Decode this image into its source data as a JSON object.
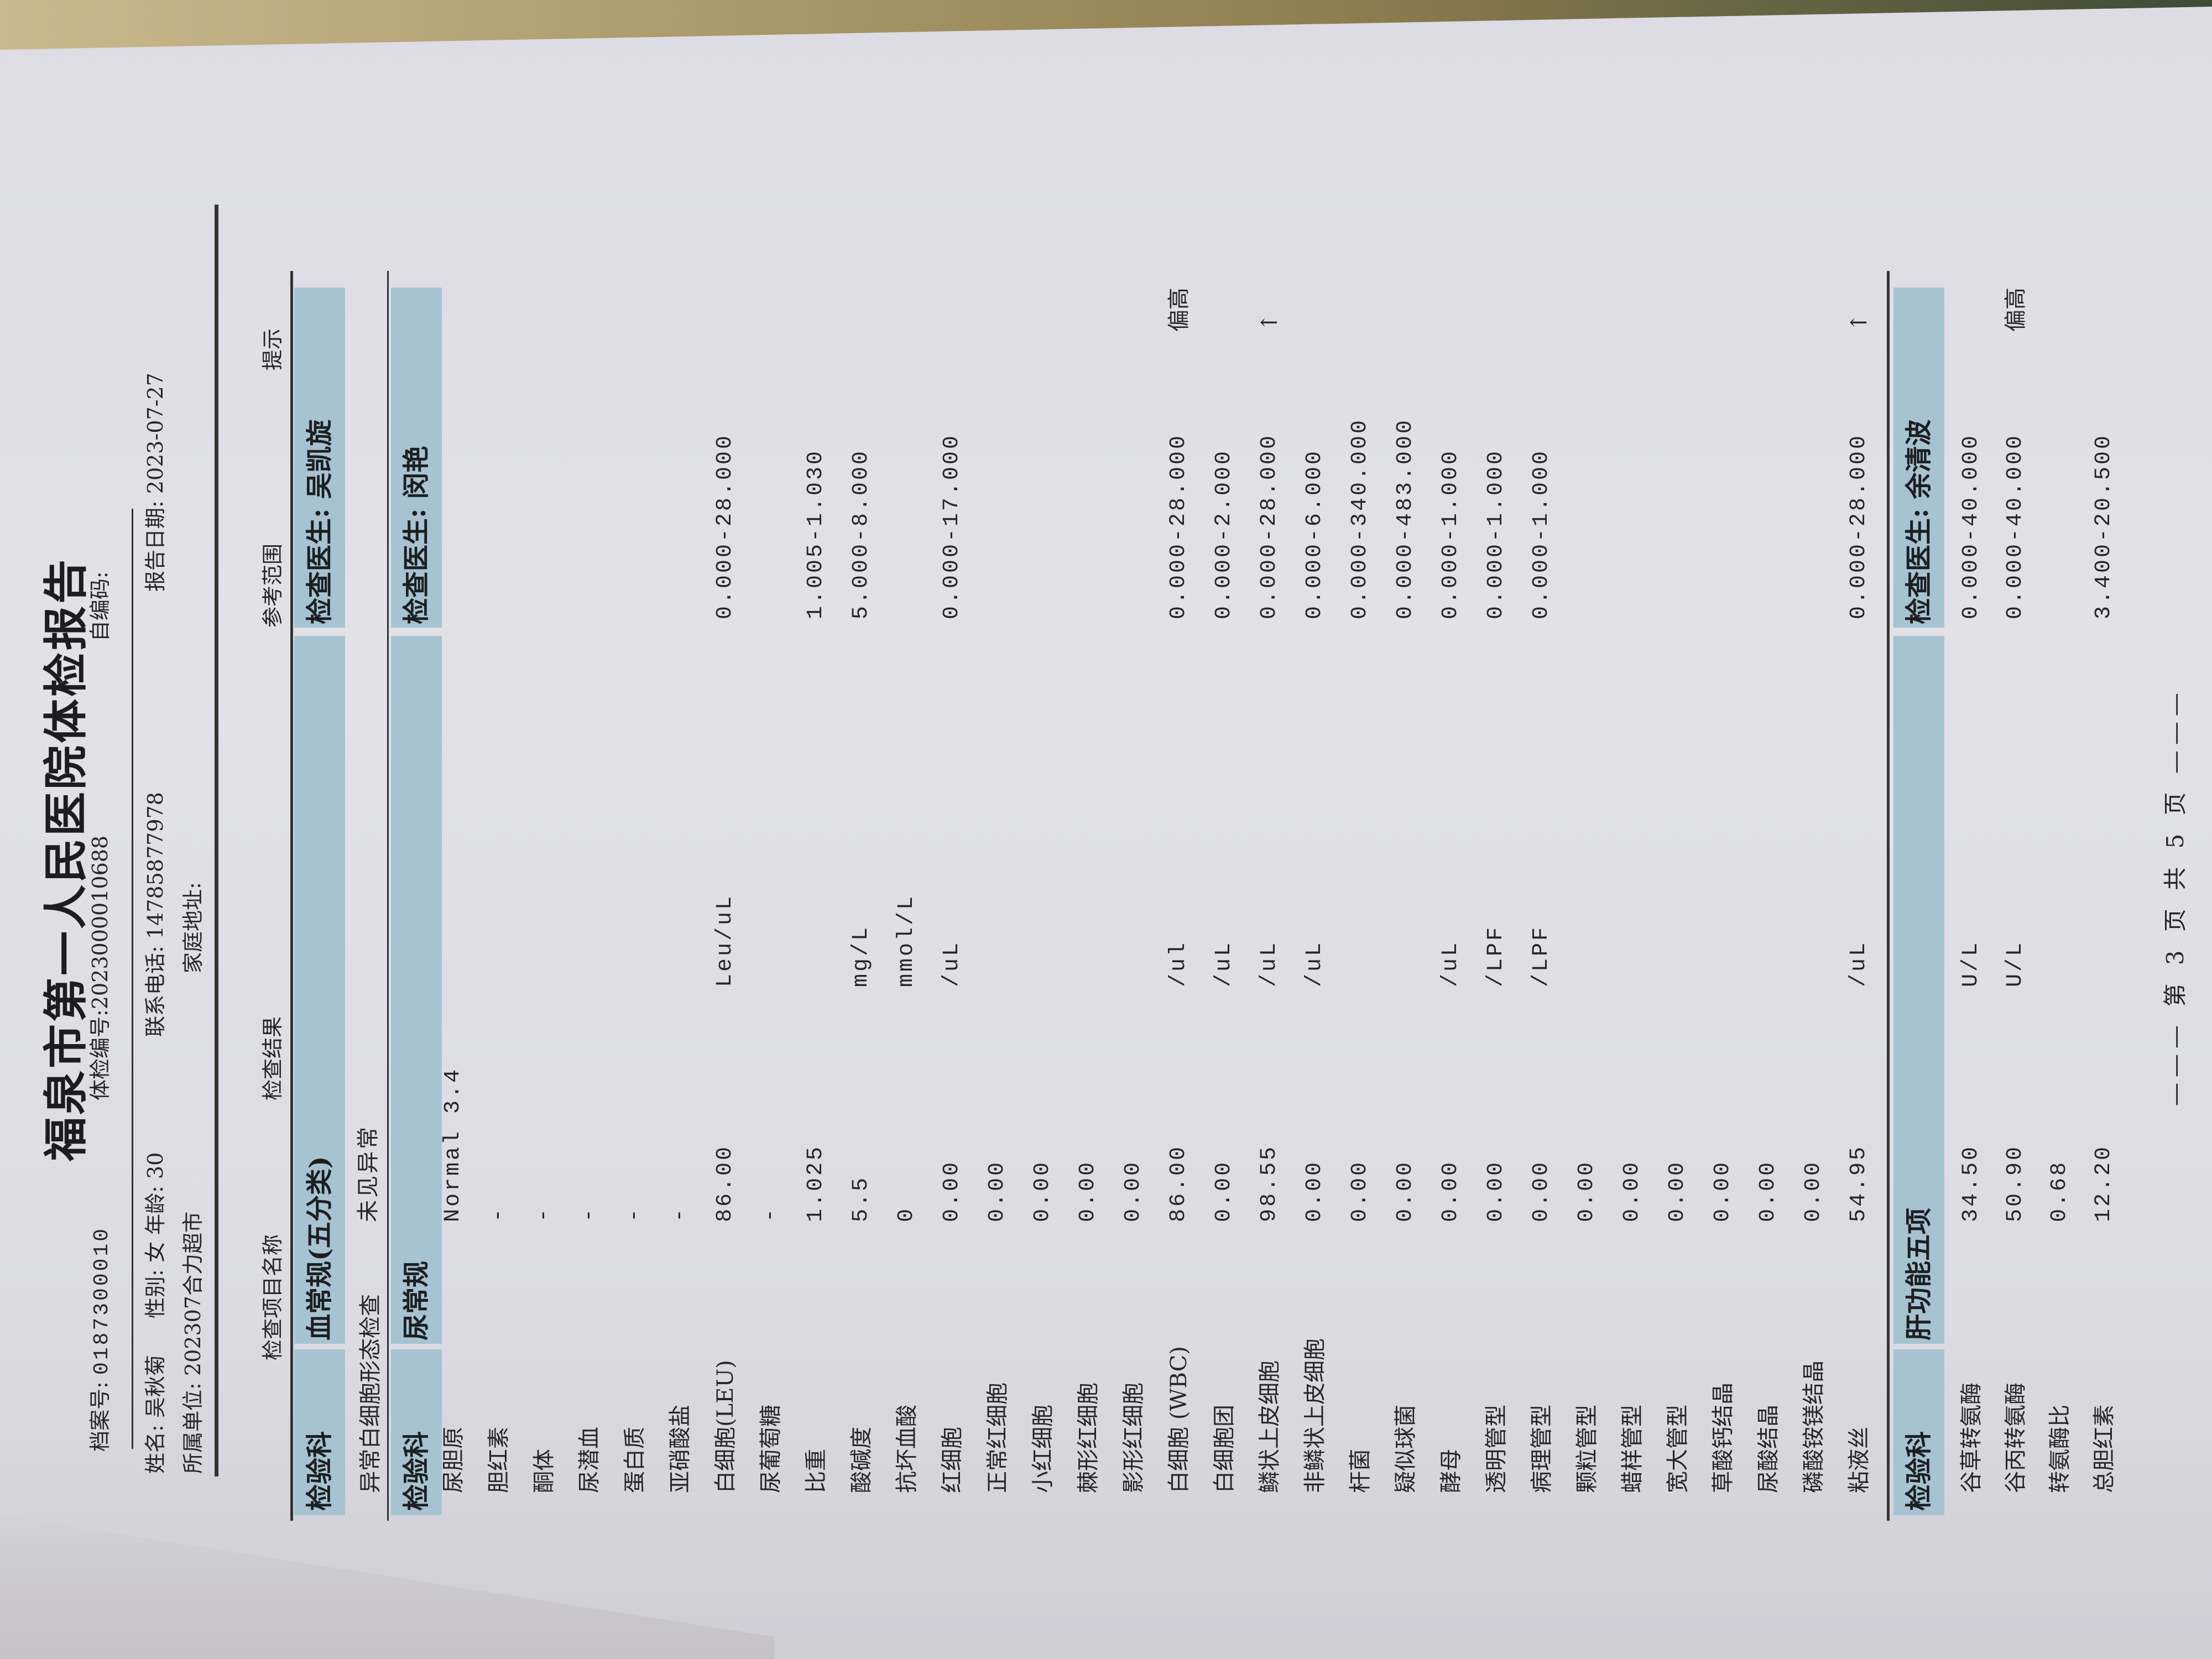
{
  "header": {
    "title": "福泉市第一人民医院体检报告",
    "file_no_label": "档案号:",
    "file_no": "0187300010",
    "exam_no_label": "体检编号:",
    "exam_no": "2023000010688",
    "self_code_label": "自编码:",
    "name_label": "姓名:",
    "name": "吴秋菊",
    "sex_label": "性别:",
    "sex": "女",
    "age_label": "年龄:",
    "age": "30",
    "phone_label": "联系电话:",
    "phone": "14785877978",
    "report_date_label": "报告日期:",
    "report_date": "2023-07-27",
    "unit_label": "所属单位:",
    "unit": "202307合力超市",
    "address_label": "家庭地址:"
  },
  "columns": [
    "检查项目名称",
    "检查结果",
    "参考范围",
    "提示"
  ],
  "sections": [
    {
      "dept": "检验科",
      "title": "血常规(五分类)",
      "doctor_label": "检查医生:",
      "doctor": "吴凯旋",
      "rows": [
        {
          "name": "异常白细胞形态检查",
          "result": "未见异常",
          "unit": "",
          "ref": "",
          "hint": ""
        }
      ]
    },
    {
      "dept": "检验科",
      "title": "尿常规",
      "doctor_label": "检查医生:",
      "doctor": "闵艳",
      "rows": [
        {
          "name": "尿胆原",
          "result": "Normal 3.4",
          "unit": "",
          "ref": "",
          "hint": ""
        },
        {
          "name": "胆红素",
          "result": "-",
          "unit": "",
          "ref": "",
          "hint": ""
        },
        {
          "name": "酮体",
          "result": "-",
          "unit": "",
          "ref": "",
          "hint": ""
        },
        {
          "name": "尿潜血",
          "result": "-",
          "unit": "",
          "ref": "",
          "hint": ""
        },
        {
          "name": "蛋白质",
          "result": "-",
          "unit": "",
          "ref": "",
          "hint": ""
        },
        {
          "name": "亚硝酸盐",
          "result": "-",
          "unit": "",
          "ref": "",
          "hint": ""
        },
        {
          "name": "白细胞(LEU)",
          "result": "86.00",
          "unit": "Leu/uL",
          "ref": "0.000-28.000",
          "hint": ""
        },
        {
          "name": "尿葡萄糖",
          "result": "-",
          "unit": "",
          "ref": "",
          "hint": ""
        },
        {
          "name": "比重",
          "result": "1.025",
          "unit": "",
          "ref": "1.005-1.030",
          "hint": ""
        },
        {
          "name": "酸碱度",
          "result": "5.5",
          "unit": "mg/L",
          "ref": "5.000-8.000",
          "hint": ""
        },
        {
          "name": "抗坏血酸",
          "result": "0",
          "unit": "mmol/L",
          "ref": "",
          "hint": ""
        },
        {
          "name": "红细胞",
          "result": "0.00",
          "unit": "/uL",
          "ref": "0.000-17.000",
          "hint": ""
        },
        {
          "name": "正常红细胞",
          "result": "0.00",
          "unit": "",
          "ref": "",
          "hint": ""
        },
        {
          "name": "小红细胞",
          "result": "0.00",
          "unit": "",
          "ref": "",
          "hint": ""
        },
        {
          "name": "棘形红细胞",
          "result": "0.00",
          "unit": "",
          "ref": "",
          "hint": ""
        },
        {
          "name": "影形红细胞",
          "result": "0.00",
          "unit": "",
          "ref": "",
          "hint": ""
        },
        {
          "name": "白细胞 (WBC)",
          "result": "86.00",
          "unit": "/ul",
          "ref": "0.000-28.000",
          "hint": "偏高"
        },
        {
          "name": "白细胞团",
          "result": "0.00",
          "unit": "/uL",
          "ref": "0.000-2.000",
          "hint": ""
        },
        {
          "name": "鳞状上皮细胞",
          "result": "98.55",
          "unit": "/uL",
          "ref": "0.000-28.000",
          "hint": "↑"
        },
        {
          "name": "非鳞状上皮细胞",
          "result": "0.00",
          "unit": "/uL",
          "ref": "0.000-6.000",
          "hint": ""
        },
        {
          "name": "杆菌",
          "result": "0.00",
          "unit": "",
          "ref": "0.000-340.000",
          "hint": ""
        },
        {
          "name": "疑似球菌",
          "result": "0.00",
          "unit": "",
          "ref": "0.000-483.000",
          "hint": ""
        },
        {
          "name": "酵母",
          "result": "0.00",
          "unit": "/uL",
          "ref": "0.000-1.000",
          "hint": ""
        },
        {
          "name": "透明管型",
          "result": "0.00",
          "unit": "/LPF",
          "ref": "0.000-1.000",
          "hint": ""
        },
        {
          "name": "病理管型",
          "result": "0.00",
          "unit": "/LPF",
          "ref": "0.000-1.000",
          "hint": ""
        },
        {
          "name": "颗粒管型",
          "result": "0.00",
          "unit": "",
          "ref": "",
          "hint": ""
        },
        {
          "name": "蜡样管型",
          "result": "0.00",
          "unit": "",
          "ref": "",
          "hint": ""
        },
        {
          "name": "宽大管型",
          "result": "0.00",
          "unit": "",
          "ref": "",
          "hint": ""
        },
        {
          "name": "草酸钙结晶",
          "result": "0.00",
          "unit": "",
          "ref": "",
          "hint": ""
        },
        {
          "name": "尿酸结晶",
          "result": "0.00",
          "unit": "",
          "ref": "",
          "hint": ""
        },
        {
          "name": "磷酸铵镁结晶",
          "result": "0.00",
          "unit": "",
          "ref": "",
          "hint": ""
        },
        {
          "name": "粘液丝",
          "result": "54.95",
          "unit": "/uL",
          "ref": "0.000-28.000",
          "hint": "↑"
        }
      ]
    },
    {
      "dept": "检验科",
      "title": "肝功能五项",
      "doctor_label": "检查医生:",
      "doctor": "余清波",
      "rows": [
        {
          "name": "谷草转氨酶",
          "result": "34.50",
          "unit": "U/L",
          "ref": "0.000-40.000",
          "hint": ""
        },
        {
          "name": "谷丙转氨酶",
          "result": "50.90",
          "unit": "U/L",
          "ref": "0.000-40.000",
          "hint": "偏高"
        },
        {
          "name": "转氨酶比",
          "result": "0.68",
          "unit": "",
          "ref": "",
          "hint": ""
        },
        {
          "name": "总胆红素",
          "result": "12.20",
          "unit": "",
          "ref": "3.400-20.500",
          "hint": ""
        }
      ]
    }
  ],
  "footer": {
    "page_text": "第 3 页 共 5 页",
    "dashes": "———"
  },
  "colors": {
    "band": "#a7c3d2",
    "paper": "#dcdbe3",
    "text": "#262528"
  }
}
